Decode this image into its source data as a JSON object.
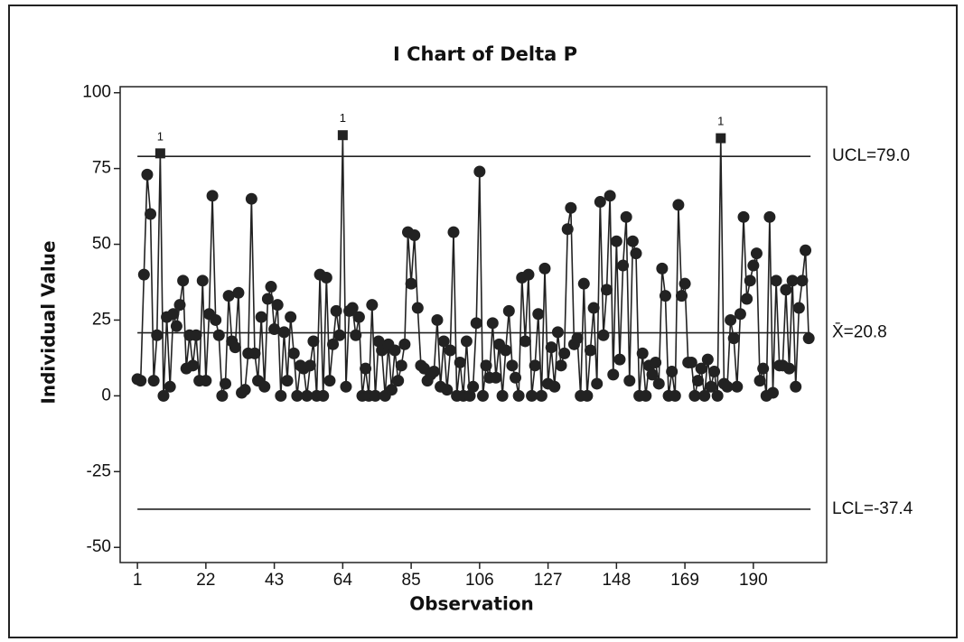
{
  "chart_data": {
    "type": "control",
    "title": "I Chart of Delta P",
    "x_label": "Observation",
    "y_label": "Individual Value",
    "x": [
      1,
      2,
      3,
      4,
      5,
      6,
      7,
      8,
      9,
      10,
      11,
      12,
      13,
      14,
      15,
      16,
      17,
      18,
      19,
      20,
      21,
      22,
      23,
      24,
      25,
      26,
      27,
      28,
      29,
      30,
      31,
      32,
      33,
      34,
      35,
      36,
      37,
      38,
      39,
      40,
      41,
      42,
      43,
      44,
      45,
      46,
      47,
      48,
      49,
      50,
      51,
      52,
      53,
      54,
      55,
      56,
      57,
      58,
      59,
      60,
      61,
      62,
      63,
      64,
      65,
      66,
      67,
      68,
      69,
      70,
      71,
      72,
      73,
      74,
      75,
      76,
      77,
      78,
      79,
      80,
      81,
      82,
      83,
      84,
      85,
      86,
      87,
      88,
      89,
      90,
      91,
      92,
      93,
      94,
      95,
      96,
      97,
      98,
      99,
      100,
      101,
      102,
      103,
      104,
      105,
      106,
      107,
      108,
      109,
      110,
      111,
      112,
      113,
      114,
      115,
      116,
      117,
      118,
      119,
      120,
      121,
      122,
      123,
      124,
      125,
      126,
      127,
      128,
      129,
      130,
      131,
      132,
      133,
      134,
      135,
      136,
      137,
      138,
      139,
      140,
      141,
      142,
      143,
      144,
      145,
      146,
      147,
      148,
      149,
      150,
      151,
      152,
      153,
      154,
      155,
      156,
      157,
      158,
      159,
      160,
      161,
      162,
      163,
      164,
      165,
      166,
      167,
      168,
      169,
      170,
      171,
      172,
      173,
      174,
      175,
      176,
      177,
      178,
      179,
      180,
      181,
      182,
      183,
      184,
      185,
      186,
      187,
      188,
      189,
      190,
      191,
      192,
      193,
      194,
      195,
      196,
      197,
      198,
      199,
      200,
      201,
      202,
      203,
      204,
      205,
      206,
      207
    ],
    "series": [
      {
        "color": "#222222",
        "values": [
          5.5,
          5,
          40,
          73,
          60,
          5,
          20,
          80,
          0,
          26,
          3,
          27,
          23,
          30,
          38,
          9,
          20,
          10,
          20,
          5,
          38,
          5,
          27,
          66,
          25,
          20,
          0,
          4,
          33,
          18,
          16,
          34,
          1,
          2,
          14,
          65,
          14,
          5,
          26,
          3,
          32,
          36,
          22,
          30,
          0,
          21,
          5,
          26,
          14,
          0,
          10,
          9,
          0,
          10,
          18,
          0,
          40,
          0,
          39,
          5,
          17,
          28,
          20,
          86,
          3,
          28,
          29,
          20,
          26,
          0,
          9,
          0,
          30,
          0,
          18,
          15,
          0,
          17,
          2,
          15,
          5,
          10,
          17,
          54,
          37,
          53,
          29,
          10,
          9,
          5,
          7,
          8,
          25,
          3,
          18,
          2,
          15,
          54,
          0,
          11,
          0,
          18,
          0,
          3,
          24,
          74,
          0,
          10,
          6,
          24,
          6,
          17,
          0,
          15,
          28,
          10,
          6,
          0,
          39,
          18,
          40,
          0,
          10,
          27,
          0,
          42,
          4,
          16,
          3,
          21,
          10,
          14,
          55,
          62,
          17,
          19,
          0,
          37,
          0,
          15,
          29,
          4,
          64,
          20,
          35,
          66,
          7,
          51,
          12,
          43,
          59,
          5,
          51,
          47,
          0,
          14,
          0,
          10,
          7,
          11,
          4,
          42,
          33,
          0,
          8,
          0,
          63,
          33,
          37,
          11,
          11,
          0,
          5,
          9,
          0,
          12,
          3,
          8,
          0,
          85,
          4,
          3,
          25,
          19,
          3,
          27,
          59,
          32,
          38,
          43,
          47,
          5,
          9,
          0,
          59,
          1,
          38,
          10,
          10,
          35,
          9,
          38,
          3,
          29,
          38,
          48,
          19
        ]
      }
    ],
    "control_limits": [
      {
        "label": "UCL=79.0",
        "value": 79.0
      },
      {
        "label": "X̄=20.8",
        "value": 20.8
      },
      {
        "label": "LCL=-37.4",
        "value": -37.4
      }
    ],
    "annotations": [
      {
        "text": "1",
        "x": 8
      },
      {
        "text": "1",
        "x": 64
      },
      {
        "text": "1",
        "x": 180
      }
    ],
    "xlim": [
      -4.3,
      212.5
    ],
    "ylim": [
      -55,
      102
    ],
    "xticks": [
      1,
      22,
      43,
      64,
      85,
      106,
      127,
      148,
      169,
      190
    ],
    "yticks": [
      -50,
      -25,
      0,
      25,
      50,
      75,
      100
    ]
  }
}
